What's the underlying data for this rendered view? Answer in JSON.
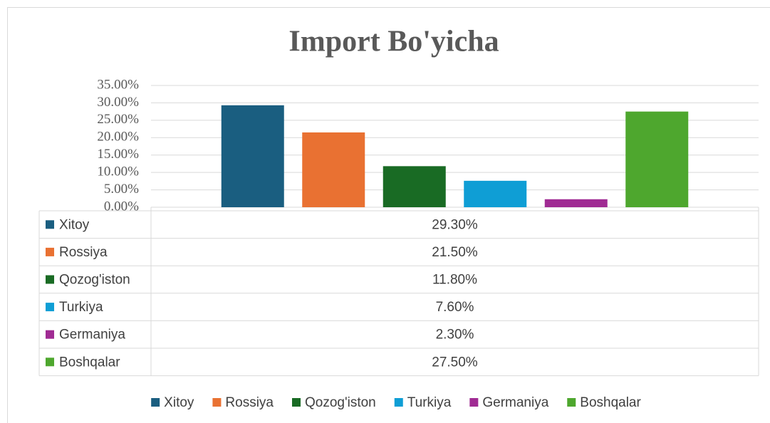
{
  "chart_data": {
    "type": "bar",
    "title": "Import Bo'yicha",
    "categories": [
      null
    ],
    "series": [
      {
        "name": "Xitoy",
        "color": "#1a5e80",
        "values": [
          29.3
        ],
        "value_labels": [
          "29.30%"
        ]
      },
      {
        "name": "Rossiya",
        "color": "#e97132",
        "values": [
          21.5
        ],
        "value_labels": [
          "21.50%"
        ]
      },
      {
        "name": "Qozog'iston",
        "color": "#196b24",
        "values": [
          11.8
        ],
        "value_labels": [
          "11.80%"
        ]
      },
      {
        "name": "Turkiya",
        "color": "#0f9ed5",
        "values": [
          7.6
        ],
        "value_labels": [
          "7.60%"
        ]
      },
      {
        "name": "Germaniya",
        "color": "#a02b93",
        "values": [
          2.3
        ],
        "value_labels": [
          "2.30%"
        ]
      },
      {
        "name": "Boshqalar",
        "color": "#4ea72e",
        "values": [
          27.5
        ],
        "value_labels": [
          "27.50%"
        ]
      }
    ],
    "ylim": [
      0,
      35
    ],
    "yticks": [
      {
        "value": 0,
        "label": "0.00%"
      },
      {
        "value": 5,
        "label": "5.00%"
      },
      {
        "value": 10,
        "label": "10.00%"
      },
      {
        "value": 15,
        "label": "15.00%"
      },
      {
        "value": 20,
        "label": "20.00%"
      },
      {
        "value": 25,
        "label": "25.00%"
      },
      {
        "value": 30,
        "label": "30.00%"
      },
      {
        "value": 35,
        "label": "35.00%"
      }
    ],
    "grid": true,
    "legend": "bottom"
  }
}
